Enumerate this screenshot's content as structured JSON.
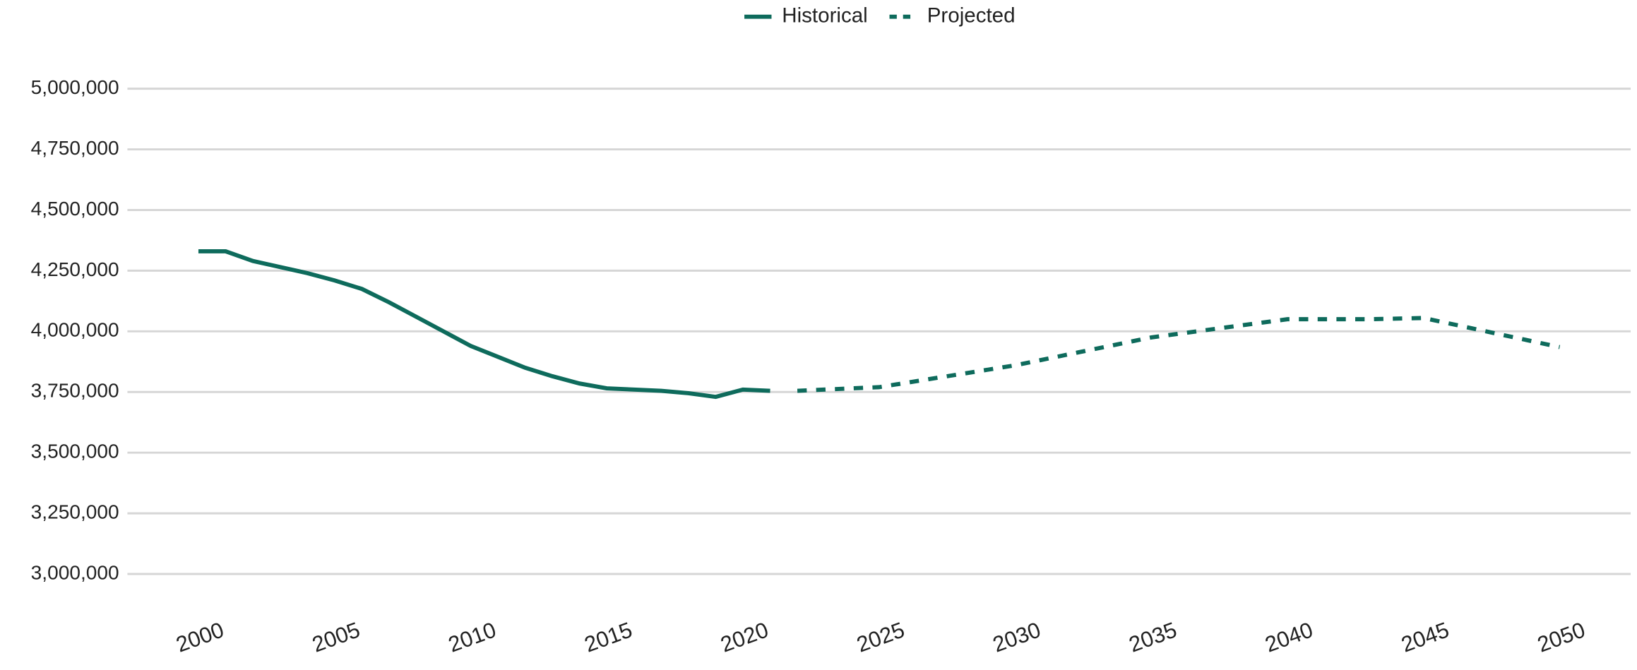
{
  "chart_data": {
    "type": "line",
    "series": [
      {
        "name": "Historical",
        "color": "#0e6b5c",
        "dashed": false,
        "x": [
          2000,
          2001,
          2002,
          2003,
          2004,
          2005,
          2006,
          2007,
          2008,
          2009,
          2010,
          2011,
          2012,
          2013,
          2014,
          2015,
          2016,
          2017,
          2018,
          2019,
          2020,
          2021
        ],
        "values": [
          4330000,
          4330000,
          4290000,
          4265000,
          4240000,
          4210000,
          4175000,
          4120000,
          4060000,
          4000000,
          3940000,
          3895000,
          3850000,
          3815000,
          3785000,
          3765000,
          3760000,
          3755000,
          3745000,
          3730000,
          3760000,
          3755000
        ]
      },
      {
        "name": "Projected",
        "color": "#0e6b5c",
        "dashed": true,
        "x": [
          2022,
          2025,
          2030,
          2035,
          2040,
          2043,
          2045,
          2050
        ],
        "values": [
          3755000,
          3770000,
          3860000,
          3975000,
          4050000,
          4050000,
          4055000,
          3935000
        ]
      }
    ],
    "xlim": [
      2000,
      2050
    ],
    "xticks": [
      2000,
      2005,
      2010,
      2015,
      2020,
      2025,
      2030,
      2035,
      2040,
      2045,
      2050
    ],
    "ylim": [
      3000000,
      5000000
    ],
    "yticks": [
      {
        "value": 3000000,
        "label": "3,000,000"
      },
      {
        "value": 3250000,
        "label": "3,250,000"
      },
      {
        "value": 3500000,
        "label": "3,500,000"
      },
      {
        "value": 3750000,
        "label": "3,750,000"
      },
      {
        "value": 4000000,
        "label": "4,000,000"
      },
      {
        "value": 4250000,
        "label": "4,250,000"
      },
      {
        "value": 4500000,
        "label": "4,500,000"
      },
      {
        "value": 4750000,
        "label": "4,750,000"
      },
      {
        "value": 5000000,
        "label": "5,000,000"
      }
    ],
    "grid": true,
    "legend": "top"
  }
}
